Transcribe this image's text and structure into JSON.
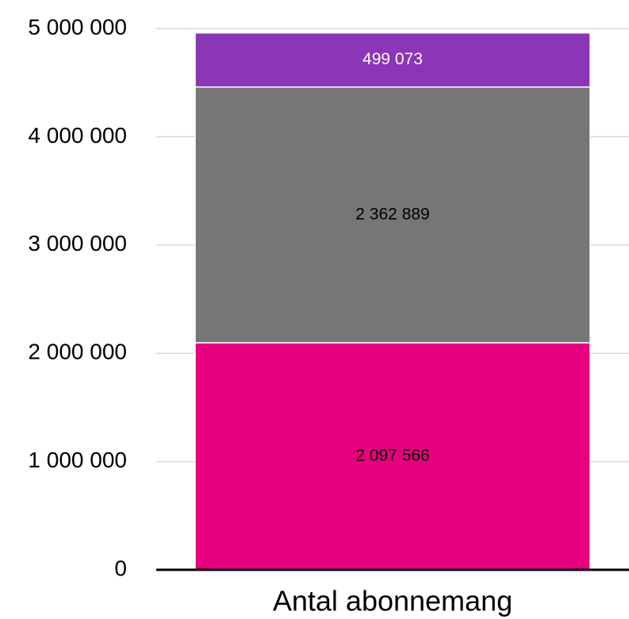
{
  "chart_data": {
    "type": "stacked_bar",
    "categories": [
      "Antal abonnemang"
    ],
    "series": [
      {
        "color": "#e6007e",
        "label_color": "#000000",
        "values": [
          2097566
        ],
        "value_labels": [
          "2 097 566"
        ]
      },
      {
        "color": "#767676",
        "label_color": "#000000",
        "values": [
          2362889
        ],
        "value_labels": [
          "2 362 889"
        ]
      },
      {
        "color": "#8b35b7",
        "label_color": "#ffffff",
        "values": [
          499073
        ],
        "value_labels": [
          "499 073"
        ]
      }
    ],
    "ylim": [
      0,
      5000000
    ],
    "yticks": [
      0,
      {
        "value": 1000000,
        "label": "1 000 000"
      },
      {
        "value": 2000000,
        "label": "2 000 000"
      },
      {
        "value": 3000000,
        "label": "3 000 000"
      },
      {
        "value": 4000000,
        "label": "4 000 000"
      },
      {
        "value": 5000000,
        "label": "5 000 000"
      }
    ],
    "grid": true
  }
}
